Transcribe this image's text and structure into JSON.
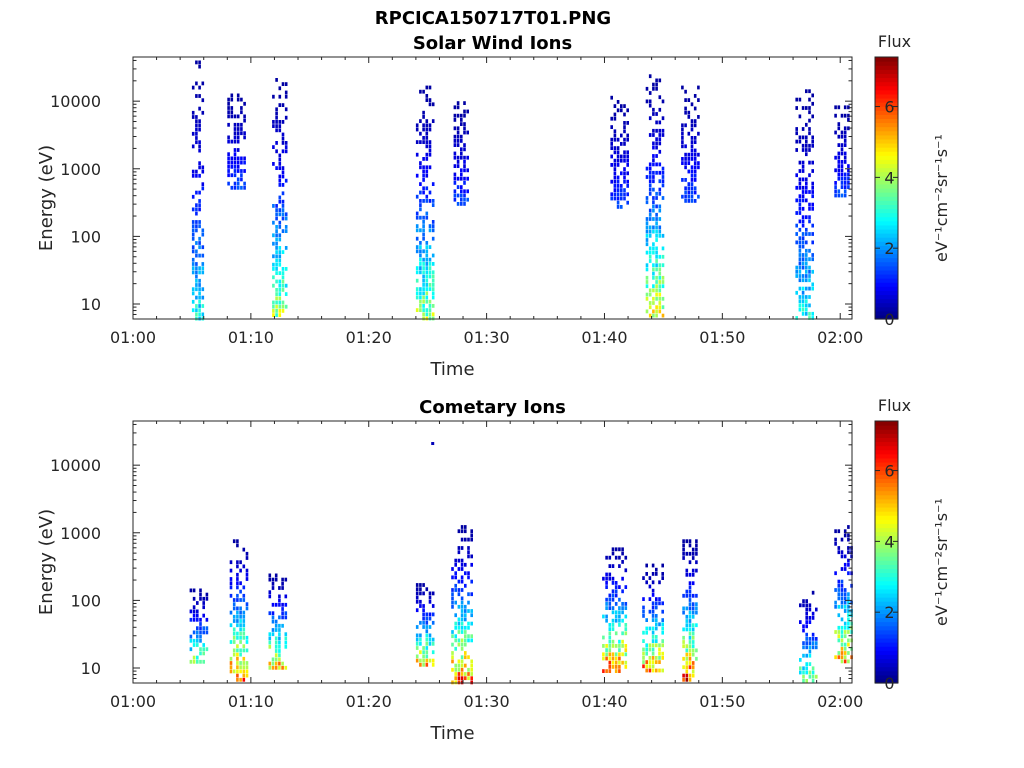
{
  "figure": {
    "main_title": "RPCICA150717T01.PNG"
  },
  "chart_data": [
    {
      "type": "heatmap",
      "title": "Solar Wind Ions",
      "xlabel": "Time",
      "ylabel": "Energy (eV)",
      "x_ticks": [
        "01:00",
        "01:10",
        "01:20",
        "01:30",
        "01:40",
        "01:50",
        "02:00"
      ],
      "x_range_minutes": [
        0,
        61
      ],
      "y_scale": "log",
      "y_ticks": [
        "10",
        "100",
        "1000",
        "10000"
      ],
      "y_range": [
        6,
        45000
      ],
      "colorbar": {
        "title": "Flux",
        "label": "eV⁻¹cm⁻²sr⁻¹s⁻¹",
        "ticks": [
          "0",
          "2",
          "4",
          "6"
        ],
        "range": [
          0,
          7.4
        ],
        "colormap": "jet"
      },
      "bursts": [
        {
          "t_start": 5.0,
          "t_end": 6.2,
          "e_min": 6,
          "e_max": 40000,
          "peak_flux": 3.3
        },
        {
          "t_start": 8.0,
          "t_end": 9.6,
          "e_min": 500,
          "e_max": 15000,
          "peak_flux": 1.5
        },
        {
          "t_start": 11.8,
          "t_end": 13.1,
          "e_min": 6,
          "e_max": 22000,
          "peak_flux": 4.6
        },
        {
          "t_start": 24.0,
          "t_end": 25.5,
          "e_min": 6,
          "e_max": 17000,
          "peak_flux": 4.6
        },
        {
          "t_start": 27.2,
          "t_end": 28.5,
          "e_min": 300,
          "e_max": 10000,
          "peak_flux": 1.5
        },
        {
          "t_start": 40.5,
          "t_end": 42.0,
          "e_min": 250,
          "e_max": 12000,
          "peak_flux": 1.5
        },
        {
          "t_start": 43.5,
          "t_end": 45.0,
          "e_min": 6,
          "e_max": 25000,
          "peak_flux": 5.2
        },
        {
          "t_start": 46.5,
          "t_end": 48.1,
          "e_min": 300,
          "e_max": 17000,
          "peak_flux": 1.5
        },
        {
          "t_start": 56.2,
          "t_end": 57.8,
          "e_min": 6,
          "e_max": 15000,
          "peak_flux": 3.3
        },
        {
          "t_start": 59.5,
          "t_end": 60.9,
          "e_min": 380,
          "e_max": 10000,
          "peak_flux": 1.5
        }
      ]
    },
    {
      "type": "heatmap",
      "title": "Cometary Ions",
      "xlabel": "Time",
      "ylabel": "Energy (eV)",
      "x_ticks": [
        "01:00",
        "01:10",
        "01:20",
        "01:30",
        "01:40",
        "01:50",
        "02:00"
      ],
      "x_range_minutes": [
        0,
        61
      ],
      "y_scale": "log",
      "y_ticks": [
        "10",
        "100",
        "1000",
        "10000"
      ],
      "y_range": [
        6,
        45000
      ],
      "colorbar": {
        "title": "Flux",
        "label": "eV⁻¹cm⁻²sr⁻¹s⁻¹",
        "ticks": [
          "0",
          "2",
          "4",
          "6"
        ],
        "range": [
          0,
          7.4
        ],
        "colormap": "jet"
      },
      "bursts": [
        {
          "t_start": 4.8,
          "t_end": 6.3,
          "e_min": 12,
          "e_max": 150,
          "peak_flux": 4.6
        },
        {
          "t_start": 8.2,
          "t_end": 9.7,
          "e_min": 6,
          "e_max": 800,
          "peak_flux": 7.0
        },
        {
          "t_start": 11.5,
          "t_end": 13.2,
          "e_min": 10,
          "e_max": 250,
          "peak_flux": 6.3
        },
        {
          "t_start": 24.0,
          "t_end": 25.5,
          "e_min": 10,
          "e_max": 180,
          "peak_flux": 6.3
        },
        {
          "t_start": 27.0,
          "t_end": 28.8,
          "e_min": 6,
          "e_max": 1300,
          "peak_flux": 7.0
        },
        {
          "t_start": 39.8,
          "t_end": 42.0,
          "e_min": 8,
          "e_max": 700,
          "peak_flux": 7.0
        },
        {
          "t_start": 43.2,
          "t_end": 45.2,
          "e_min": 8,
          "e_max": 350,
          "peak_flux": 6.8
        },
        {
          "t_start": 46.6,
          "t_end": 48.0,
          "e_min": 6,
          "e_max": 800,
          "peak_flux": 7.2
        },
        {
          "t_start": 56.5,
          "t_end": 58.0,
          "e_min": 6,
          "e_max": 160,
          "peak_flux": 4.6
        },
        {
          "t_start": 59.5,
          "t_end": 61.0,
          "e_min": 12,
          "e_max": 1300,
          "peak_flux": 6.3
        }
      ],
      "isolated_points": [
        {
          "t": 25.3,
          "e": 22000,
          "flux": 0.4
        }
      ]
    }
  ]
}
